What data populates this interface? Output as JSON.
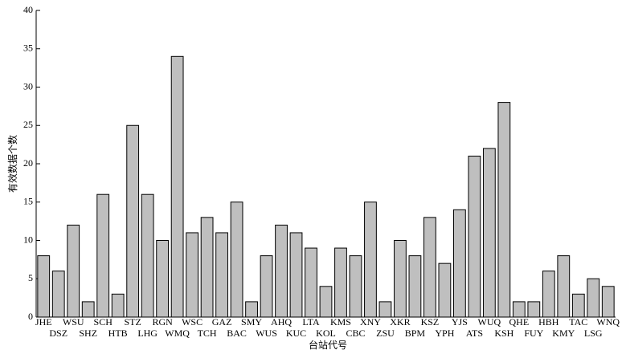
{
  "chart_data": {
    "type": "bar",
    "x_label": "台站代号",
    "y_label": "有效数据个数",
    "categories": [
      "JHE",
      "DSZ",
      "WSU",
      "SHZ",
      "SCH",
      "HTB",
      "STZ",
      "LHG",
      "RGN",
      "WMQ",
      "WSC",
      "TCH",
      "GAZ",
      "BAC",
      "SMY",
      "WUS",
      "AHQ",
      "KUC",
      "LTA",
      "KOL",
      "KMS",
      "CBC",
      "XNY",
      "ZSU",
      "XKR",
      "BPM",
      "KSZ",
      "YPH",
      "YJS",
      "ATS",
      "WUQ",
      "KSH",
      "QHE",
      "FUY",
      "HBH",
      "KMY",
      "TAC",
      "LSG",
      "WNQ"
    ],
    "values": [
      8,
      6,
      12,
      2,
      16,
      3,
      25,
      16,
      10,
      34,
      11,
      13,
      11,
      15,
      2,
      8,
      12,
      11,
      9,
      4,
      9,
      8,
      15,
      2,
      10,
      8,
      13,
      7,
      14,
      21,
      22,
      28,
      2,
      2,
      6,
      8,
      3,
      5,
      4
    ],
    "color": "#bfbfbf",
    "ylim": [
      0,
      40
    ],
    "yticks": [
      0,
      5,
      10,
      15,
      20,
      25,
      30,
      35,
      40
    ]
  }
}
